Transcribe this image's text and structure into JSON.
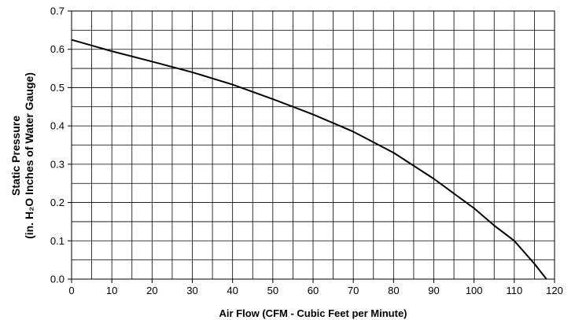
{
  "chart_data": {
    "type": "line",
    "title": "",
    "xlabel": "Air Flow (CFM - Cubic Feet per Minute)",
    "ylabel_lines": [
      "Static Pressure",
      "(in. H₂O Inches of Water Gauge)"
    ],
    "xlim": [
      0,
      120
    ],
    "ylim": [
      0,
      0.7
    ],
    "x_ticks": [
      0,
      10,
      20,
      30,
      40,
      50,
      60,
      70,
      80,
      90,
      100,
      110,
      120
    ],
    "x_tick_labels": [
      "0",
      "10",
      "20",
      "30",
      "40",
      "50",
      "60",
      "70",
      "80",
      "90",
      "100",
      "110",
      "120"
    ],
    "y_ticks": [
      0,
      0.1,
      0.2,
      0.3,
      0.4,
      0.5,
      0.6,
      0.7
    ],
    "y_tick_labels": [
      "0.0",
      "0.1",
      "0.2",
      "0.3",
      "0.4",
      "0.5",
      "0.6",
      "0.7"
    ],
    "x_grid_step": 5,
    "y_grid_step": 0.05,
    "grid": true,
    "line_color": "#000000",
    "grid_color": "#000000",
    "series": [
      {
        "x": [
          0,
          10,
          20,
          30,
          40,
          50,
          60,
          70,
          80,
          90,
          100,
          105,
          110,
          115,
          118
        ],
        "values": [
          0.625,
          0.595,
          0.568,
          0.54,
          0.508,
          0.47,
          0.43,
          0.385,
          0.33,
          0.262,
          0.185,
          0.14,
          0.1,
          0.04,
          0.0
        ]
      }
    ]
  }
}
